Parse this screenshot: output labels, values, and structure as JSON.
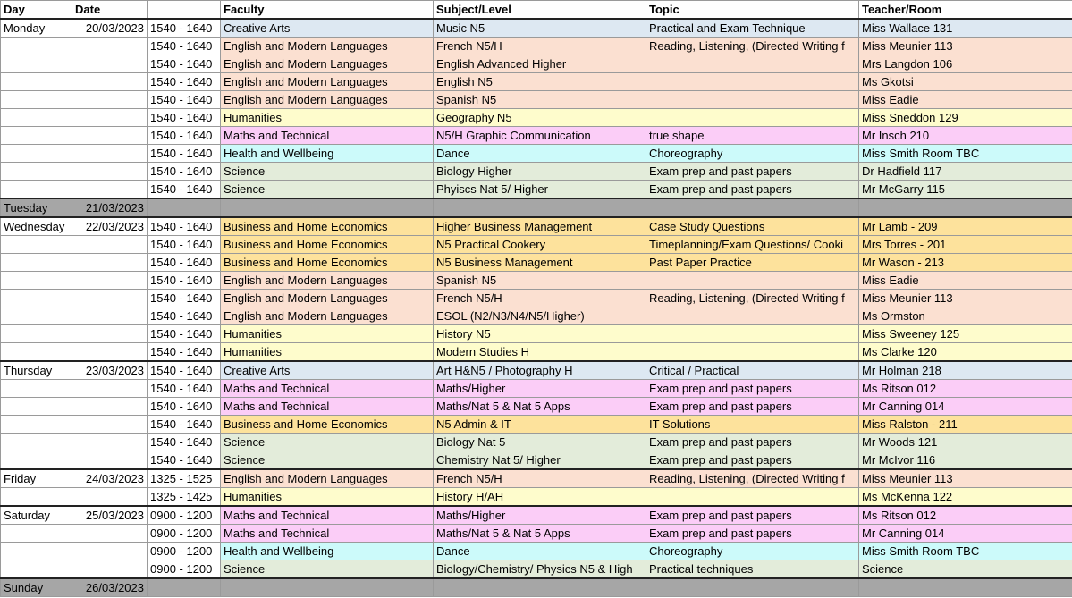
{
  "headers": [
    "Day",
    "Date",
    "",
    "Faculty",
    "Subject/Level",
    "Topic",
    "Teacher/Room"
  ],
  "rows": [
    {
      "day": "Monday",
      "date": "20/03/2023",
      "time": "1540 - 1640",
      "faculty": "Creative Arts",
      "subject": "Music N5",
      "topic": "Practical and Exam Technique",
      "teacher": "Miss Wallace 131",
      "cat": "creative",
      "start": true
    },
    {
      "day": "",
      "date": "",
      "time": "1540 - 1640",
      "faculty": "English and Modern Languages",
      "subject": "French N5/H",
      "topic": "Reading, Listening, (Directed Writing f",
      "teacher": "Miss Meunier 113",
      "cat": "english"
    },
    {
      "day": "",
      "date": "",
      "time": "1540 - 1640",
      "faculty": "English and Modern Languages",
      "subject": "English Advanced Higher",
      "topic": "",
      "teacher": "Mrs Langdon 106",
      "cat": "english"
    },
    {
      "day": "",
      "date": "",
      "time": "1540 - 1640",
      "faculty": "English and Modern Languages",
      "subject": "English N5",
      "topic": "",
      "teacher": "Ms Gkotsi",
      "cat": "english"
    },
    {
      "day": "",
      "date": "",
      "time": "1540 - 1640",
      "faculty": "English and Modern Languages",
      "subject": "Spanish N5",
      "topic": "",
      "teacher": "Miss Eadie",
      "cat": "english"
    },
    {
      "day": "",
      "date": "",
      "time": "1540 - 1640",
      "faculty": "Humanities",
      "subject": "Geography N5",
      "topic": "",
      "teacher": "Miss Sneddon 129",
      "cat": "humanities"
    },
    {
      "day": "",
      "date": "",
      "time": "1540 - 1640",
      "faculty": "Maths and Technical",
      "subject": "N5/H Graphic Communication",
      "topic": "true shape",
      "teacher": "Mr Insch 210",
      "cat": "maths"
    },
    {
      "day": "",
      "date": "",
      "time": "1540 - 1640",
      "faculty": "Health and Wellbeing",
      "subject": "Dance",
      "topic": "Choreography",
      "teacher": "Miss Smith Room TBC",
      "cat": "health"
    },
    {
      "day": "",
      "date": "",
      "time": "1540 - 1640",
      "faculty": "Science",
      "subject": "Biology Higher",
      "topic": "Exam prep and past papers",
      "teacher": "Dr Hadfield 117",
      "cat": "science"
    },
    {
      "day": "",
      "date": "",
      "time": "1540 - 1640",
      "faculty": "Science",
      "subject": "Phyiscs Nat 5/ Higher",
      "topic": "Exam prep and past papers",
      "teacher": "Mr McGarry 115",
      "cat": "science"
    },
    {
      "day": "Tuesday",
      "date": "21/03/2023",
      "time": "",
      "faculty": "",
      "subject": "",
      "topic": "",
      "teacher": "",
      "cat": "closed",
      "start": true
    },
    {
      "day": "Wednesday",
      "date": "22/03/2023",
      "time": "1540 - 1640",
      "faculty": "Business and Home Economics",
      "subject": "Higher Business Management",
      "topic": "Case Study Questions",
      "teacher": "Mr Lamb - 209",
      "cat": "business",
      "start": true
    },
    {
      "day": "",
      "date": "",
      "time": "1540 - 1640",
      "faculty": "Business and Home Economics",
      "subject": "N5 Practical Cookery",
      "topic": "Timeplanning/Exam Questions/ Cooki",
      "teacher": "Mrs Torres - 201",
      "cat": "business"
    },
    {
      "day": "",
      "date": "",
      "time": "1540 - 1640",
      "faculty": "Business and Home Economics",
      "subject": "N5 Business Management",
      "topic": "Past Paper Practice",
      "teacher": "Mr Wason - 213",
      "cat": "business"
    },
    {
      "day": "",
      "date": "",
      "time": "1540 - 1640",
      "faculty": "English and Modern Languages",
      "subject": "Spanish N5",
      "topic": "",
      "teacher": "Miss Eadie",
      "cat": "english"
    },
    {
      "day": "",
      "date": "",
      "time": "1540 - 1640",
      "faculty": "English and Modern Languages",
      "subject": "French N5/H",
      "topic": "Reading, Listening, (Directed Writing f",
      "teacher": "Miss Meunier 113",
      "cat": "english"
    },
    {
      "day": "",
      "date": "",
      "time": "1540 - 1640",
      "faculty": "English and Modern Languages",
      "subject": "ESOL (N2/N3/N4/N5/Higher)",
      "topic": "",
      "teacher": "Ms Ormston",
      "cat": "english"
    },
    {
      "day": "",
      "date": "",
      "time": "1540 - 1640",
      "faculty": "Humanities",
      "subject": "History N5",
      "topic": "",
      "teacher": "Miss Sweeney 125",
      "cat": "humanities"
    },
    {
      "day": "",
      "date": "",
      "time": "1540 - 1640",
      "faculty": "Humanities",
      "subject": "Modern Studies H",
      "topic": "",
      "teacher": "Ms Clarke 120",
      "cat": "humanities"
    },
    {
      "day": "Thursday",
      "date": "23/03/2023",
      "time": "1540 - 1640",
      "faculty": "Creative Arts",
      "subject": "Art H&N5 / Photography H",
      "topic": "Critical / Practical",
      "teacher": "Mr Holman 218",
      "cat": "creative",
      "start": true
    },
    {
      "day": "",
      "date": "",
      "time": "1540 - 1640",
      "faculty": "Maths and Technical",
      "subject": "Maths/Higher",
      "topic": "Exam prep and past papers",
      "teacher": "Ms Ritson 012",
      "cat": "maths"
    },
    {
      "day": "",
      "date": "",
      "time": "1540 - 1640",
      "faculty": "Maths and Technical",
      "subject": "Maths/Nat 5 & Nat 5 Apps",
      "topic": "Exam prep and past papers",
      "teacher": "Mr Canning 014",
      "cat": "maths"
    },
    {
      "day": "",
      "date": "",
      "time": "1540 - 1640",
      "faculty": "Business and Home Economics",
      "subject": "N5 Admin & IT",
      "topic": "IT Solutions",
      "teacher": "Miss Ralston - 211",
      "cat": "business"
    },
    {
      "day": "",
      "date": "",
      "time": "1540 - 1640",
      "faculty": "Science",
      "subject": "Biology Nat 5",
      "topic": "Exam prep and past papers",
      "teacher": "Mr Woods 121",
      "cat": "science"
    },
    {
      "day": "",
      "date": "",
      "time": "1540 - 1640",
      "faculty": "Science",
      "subject": "Chemistry Nat 5/ Higher",
      "topic": "Exam prep and past papers",
      "teacher": "Mr McIvor 116",
      "cat": "science"
    },
    {
      "day": "Friday",
      "date": "24/03/2023",
      "time": "1325 - 1525",
      "faculty": "English and Modern Languages",
      "subject": "French N5/H",
      "topic": "Reading, Listening, (Directed Writing f",
      "teacher": "Miss Meunier 113",
      "cat": "english",
      "start": true
    },
    {
      "day": "",
      "date": "",
      "time": "1325 - 1425",
      "faculty": "Humanities",
      "subject": "History H/AH",
      "topic": "",
      "teacher": "Ms McKenna 122",
      "cat": "humanities"
    },
    {
      "day": "Saturday",
      "date": "25/03/2023",
      "time": "0900 - 1200",
      "faculty": "Maths and Technical",
      "subject": "Maths/Higher",
      "topic": "Exam prep and past papers",
      "teacher": "Ms Ritson 012",
      "cat": "maths",
      "start": true
    },
    {
      "day": "",
      "date": "",
      "time": "0900 - 1200",
      "faculty": "Maths and Technical",
      "subject": "Maths/Nat 5 & Nat 5 Apps",
      "topic": "Exam prep and past papers",
      "teacher": "Mr Canning 014",
      "cat": "maths"
    },
    {
      "day": "",
      "date": "",
      "time": "0900 - 1200",
      "faculty": "Health and Wellbeing",
      "subject": "Dance",
      "topic": "Choreography",
      "teacher": "Miss Smith Room TBC",
      "cat": "health"
    },
    {
      "day": "",
      "date": "",
      "time": "0900 - 1200",
      "faculty": "Science",
      "subject": "Biology/Chemistry/ Physics N5 & High",
      "topic": "Practical techniques",
      "teacher": "Science",
      "cat": "science"
    },
    {
      "day": "Sunday",
      "date": "26/03/2023",
      "time": "",
      "faculty": "",
      "subject": "",
      "topic": "",
      "teacher": "",
      "cat": "closed",
      "start": true
    }
  ]
}
